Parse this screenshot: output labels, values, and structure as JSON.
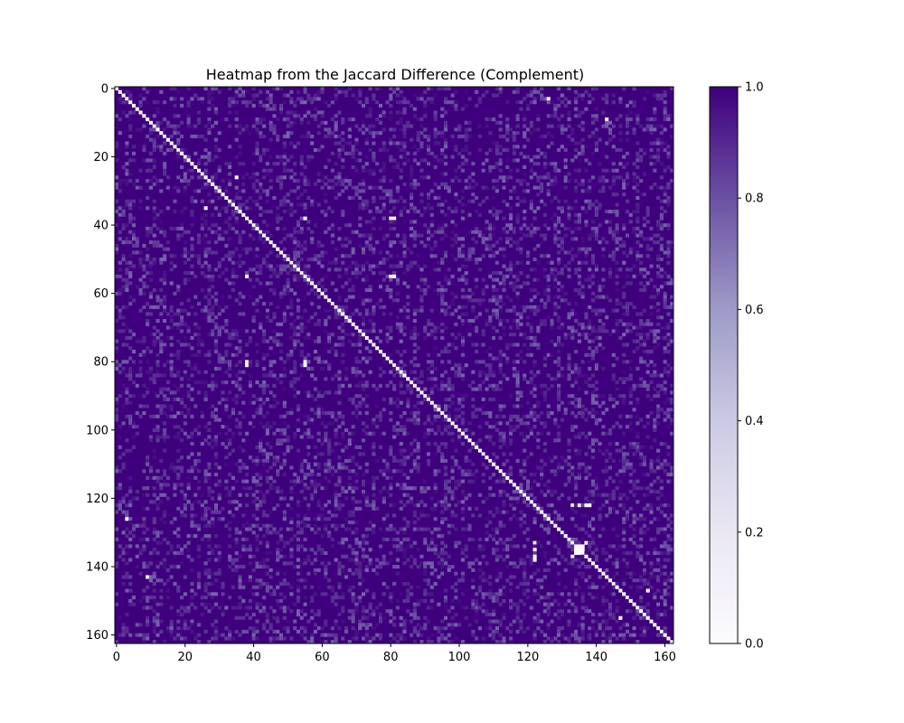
{
  "chart_data": {
    "type": "heatmap",
    "title": "Heatmap from the Jaccard Difference (Complement)",
    "xlabel": "",
    "ylabel": "",
    "matrix_size": 163,
    "xlim": [
      0,
      162
    ],
    "ylim": [
      0,
      162
    ],
    "x_ticks": [
      "0",
      "20",
      "40",
      "60",
      "80",
      "100",
      "120",
      "140",
      "160"
    ],
    "y_ticks": [
      "0",
      "20",
      "40",
      "60",
      "80",
      "100",
      "120",
      "140",
      "160"
    ],
    "diagonal_value": 0.0,
    "typical_offdiagonal_range": [
      0.75,
      1.0
    ],
    "low_value_cells": [
      [
        3,
        126
      ],
      [
        9,
        143
      ],
      [
        26,
        35
      ],
      [
        35,
        26
      ],
      [
        38,
        55
      ],
      [
        38,
        81
      ],
      [
        55,
        38
      ],
      [
        55,
        81
      ],
      [
        80,
        38
      ],
      [
        80,
        55
      ],
      [
        122,
        133
      ],
      [
        122,
        135
      ],
      [
        122,
        137
      ],
      [
        122,
        138
      ],
      [
        133,
        122
      ],
      [
        135,
        122
      ],
      [
        137,
        122
      ],
      [
        138,
        122
      ],
      [
        134,
        135
      ],
      [
        134,
        136
      ],
      [
        135,
        134
      ],
      [
        135,
        136
      ],
      [
        136,
        134
      ],
      [
        136,
        135
      ],
      [
        137,
        133
      ],
      [
        133,
        137
      ],
      [
        126,
        3
      ],
      [
        143,
        9
      ],
      [
        147,
        155
      ],
      [
        155,
        147
      ]
    ],
    "colorscale": {
      "name": "Purples",
      "low_color": "#fcfbfd",
      "mid_color": "#9e9ac8",
      "high_color": "#3f007d",
      "range": [
        0.0,
        1.0
      ],
      "ticks": [
        "0.0",
        "0.2",
        "0.4",
        "0.6",
        "0.8",
        "1.0"
      ]
    }
  }
}
